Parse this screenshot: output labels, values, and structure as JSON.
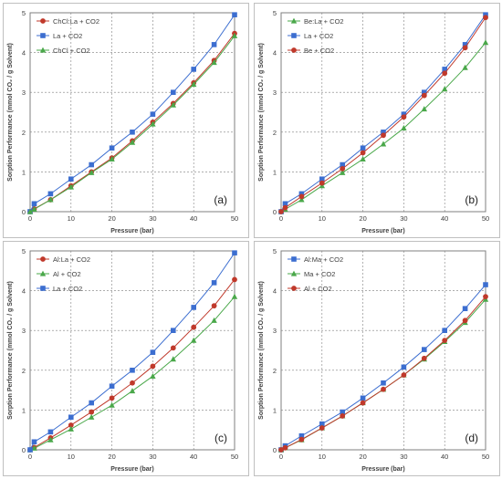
{
  "chart_data": [
    {
      "type": "line",
      "panel_label": "(a)",
      "xlabel": "Pressure (bar)",
      "ylabel": "Sorption Performance (mmol CO₂ / g Solvent)",
      "xlim": [
        0,
        50
      ],
      "ylim": [
        0,
        5
      ],
      "xticks": [
        "0",
        "10",
        "20",
        "30",
        "40",
        "50"
      ],
      "yticks": [
        "0",
        "1",
        "2",
        "3",
        "4",
        "5"
      ],
      "grid": true,
      "legend_position": "top-left",
      "x": [
        0,
        1,
        5,
        10,
        15,
        20,
        25,
        30,
        35,
        40,
        45,
        50
      ],
      "series": [
        {
          "name": "ChCl:La + CO2",
          "color": "#c0392b",
          "marker": "circle",
          "values": [
            0,
            0.07,
            0.3,
            0.65,
            1.0,
            1.35,
            1.78,
            2.25,
            2.72,
            3.24,
            3.8,
            4.48
          ]
        },
        {
          "name": "La + CO2",
          "color": "#3c6ed0",
          "marker": "square",
          "values": [
            0,
            0.2,
            0.45,
            0.82,
            1.18,
            1.6,
            2.0,
            2.45,
            3.0,
            3.58,
            4.2,
            4.95
          ]
        },
        {
          "name": "ChCl + CO2",
          "color": "#4aa84a",
          "marker": "triangle",
          "values": [
            0,
            0.06,
            0.3,
            0.62,
            0.98,
            1.32,
            1.74,
            2.2,
            2.68,
            3.2,
            3.75,
            4.42
          ]
        }
      ]
    },
    {
      "type": "line",
      "panel_label": "(b)",
      "xlabel": "Pressure (bar)",
      "ylabel": "Sorption Performance (mmol CO₂ / g Solvent)",
      "xlim": [
        0,
        50
      ],
      "ylim": [
        0,
        5
      ],
      "xticks": [
        "0",
        "10",
        "20",
        "30",
        "40",
        "50"
      ],
      "yticks": [
        "0",
        "1",
        "2",
        "3",
        "4",
        "5"
      ],
      "grid": true,
      "legend_position": "top-left",
      "x": [
        0,
        1,
        5,
        10,
        15,
        20,
        25,
        30,
        35,
        40,
        45,
        50
      ],
      "series": [
        {
          "name": "Be:La + CO2",
          "color": "#4aa84a",
          "marker": "triangle",
          "values": [
            0,
            0.06,
            0.3,
            0.65,
            0.98,
            1.32,
            1.7,
            2.1,
            2.58,
            3.08,
            3.62,
            4.25
          ]
        },
        {
          "name": "La + CO2",
          "color": "#3c6ed0",
          "marker": "square",
          "values": [
            0,
            0.2,
            0.45,
            0.82,
            1.18,
            1.6,
            2.0,
            2.45,
            3.0,
            3.58,
            4.2,
            4.95
          ]
        },
        {
          "name": "Be + CO2",
          "color": "#c0392b",
          "marker": "circle",
          "values": [
            0,
            0.1,
            0.38,
            0.72,
            1.08,
            1.48,
            1.92,
            2.38,
            2.92,
            3.48,
            4.12,
            4.88
          ]
        }
      ]
    },
    {
      "type": "line",
      "panel_label": "(c)",
      "xlabel": "Pressure (bar)",
      "ylabel": "Sorption Performance (mmol CO₂ / g Solvent)",
      "xlim": [
        0,
        50
      ],
      "ylim": [
        0,
        5
      ],
      "xticks": [
        "0",
        "10",
        "20",
        "30",
        "40",
        "50"
      ],
      "yticks": [
        "0",
        "1",
        "2",
        "3",
        "4",
        "5"
      ],
      "grid": true,
      "legend_position": "top-left",
      "x": [
        0,
        1,
        5,
        10,
        15,
        20,
        25,
        30,
        35,
        40,
        45,
        50
      ],
      "series": [
        {
          "name": "Al:La + CO2",
          "color": "#c0392b",
          "marker": "circle",
          "values": [
            0,
            0.06,
            0.3,
            0.62,
            0.95,
            1.3,
            1.68,
            2.1,
            2.56,
            3.08,
            3.62,
            4.28
          ]
        },
        {
          "name": "Al + CO2",
          "color": "#4aa84a",
          "marker": "triangle",
          "values": [
            0,
            0.04,
            0.25,
            0.52,
            0.82,
            1.12,
            1.48,
            1.85,
            2.28,
            2.75,
            3.25,
            3.85
          ]
        },
        {
          "name": "La + CO2",
          "color": "#3c6ed0",
          "marker": "square",
          "values": [
            0,
            0.2,
            0.45,
            0.82,
            1.18,
            1.6,
            2.0,
            2.45,
            3.0,
            3.58,
            4.2,
            4.95
          ]
        }
      ]
    },
    {
      "type": "line",
      "panel_label": "(d)",
      "xlabel": "Pressure (bar)",
      "ylabel": "Sorption Performance (mmol CO₂ / g Solvent)",
      "xlim": [
        0,
        50
      ],
      "ylim": [
        0,
        5
      ],
      "xticks": [
        "0",
        "10",
        "20",
        "30",
        "40",
        "50"
      ],
      "yticks": [
        "0",
        "1",
        "2",
        "3",
        "4",
        "5"
      ],
      "grid": true,
      "legend_position": "top-left",
      "x": [
        0,
        1,
        5,
        10,
        15,
        20,
        25,
        30,
        35,
        40,
        45,
        50
      ],
      "series": [
        {
          "name": "Al:Ma + CO2",
          "color": "#3c6ed0",
          "marker": "square",
          "values": [
            0,
            0.1,
            0.35,
            0.65,
            0.95,
            1.3,
            1.68,
            2.08,
            2.52,
            3.0,
            3.55,
            4.15
          ]
        },
        {
          "name": "Ma + CO2",
          "color": "#4aa84a",
          "marker": "triangle",
          "values": [
            0,
            0.05,
            0.25,
            0.55,
            0.85,
            1.18,
            1.52,
            1.88,
            2.28,
            2.72,
            3.2,
            3.78
          ]
        },
        {
          "name": "Al + CO2",
          "color": "#c0392b",
          "marker": "circle",
          "values": [
            0,
            0.05,
            0.26,
            0.55,
            0.85,
            1.18,
            1.52,
            1.88,
            2.3,
            2.75,
            3.25,
            3.85
          ]
        }
      ]
    }
  ]
}
